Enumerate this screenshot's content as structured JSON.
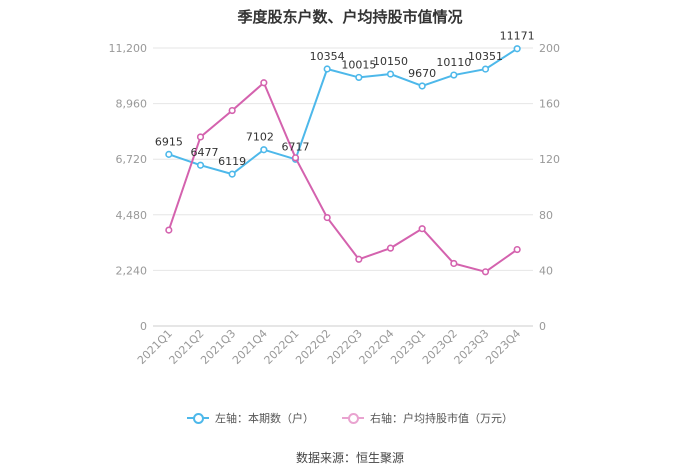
{
  "chart_data": {
    "type": "line",
    "title": "季度股东户数、户均持股市值情况",
    "categories": [
      "2021Q1",
      "2021Q2",
      "2021Q3",
      "2021Q4",
      "2022Q1",
      "2022Q2",
      "2022Q3",
      "2022Q4",
      "2023Q1",
      "2023Q2",
      "2023Q3",
      "2023Q4"
    ],
    "left_axis": {
      "ticks": [
        "0",
        "2,240",
        "4,480",
        "6,720",
        "8,960",
        "11,200"
      ],
      "ylim": [
        0,
        11200
      ]
    },
    "right_axis": {
      "ticks": [
        "0",
        "40",
        "80",
        "120",
        "160",
        "200"
      ],
      "ylim": [
        0,
        200
      ]
    },
    "series": [
      {
        "name": "左轴：本期数（户）",
        "axis": "left",
        "color": "#4db8ea",
        "values": [
          6915,
          6477,
          6119,
          7102,
          6717,
          10354,
          10015,
          10150,
          9670,
          10110,
          10351,
          11171
        ],
        "labels": [
          "6915",
          "6477",
          "6119",
          "7102",
          "6717",
          "10354",
          "10015",
          "10150",
          "9670",
          "10110",
          "10351",
          "11171"
        ]
      },
      {
        "name": "右轴：户均持股市值（万元）",
        "axis": "right",
        "color": "#d462ae",
        "values": [
          69,
          136,
          155,
          175,
          121,
          78,
          48,
          56,
          70,
          45,
          39,
          55
        ]
      }
    ],
    "grid": true,
    "legend": "bottom"
  },
  "source": "数据来源：恒生聚源"
}
